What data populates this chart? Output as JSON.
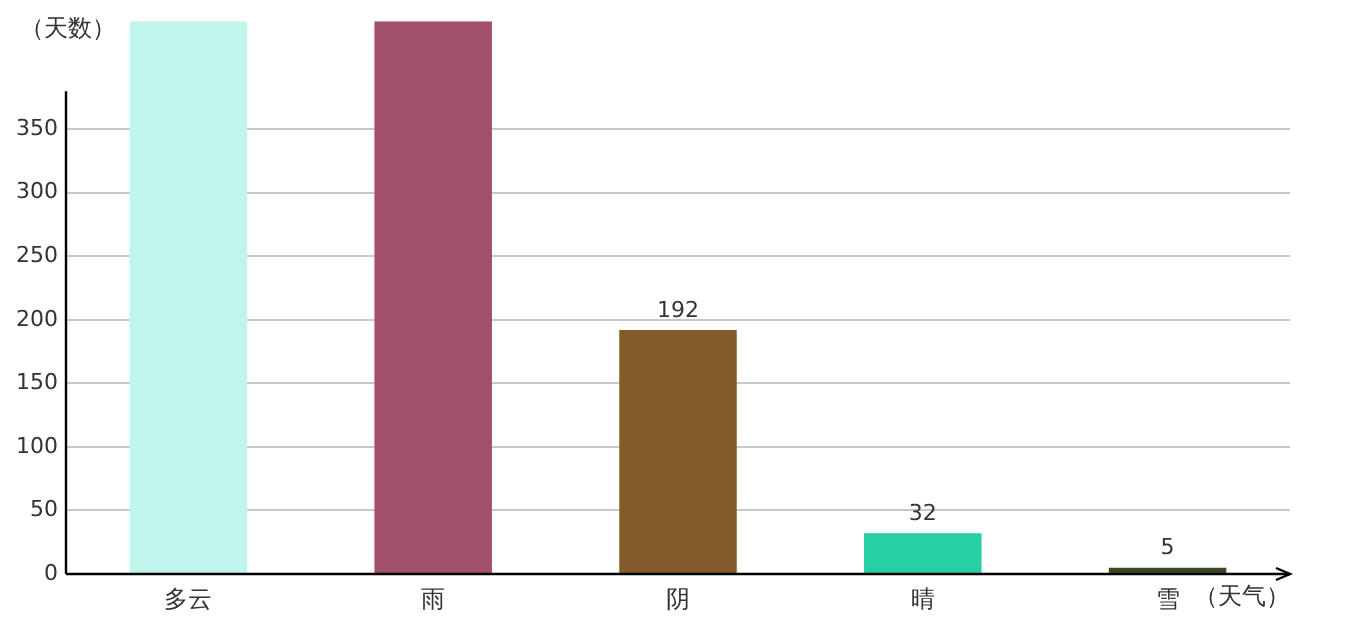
{
  "chart_data": {
    "type": "bar",
    "xlabel": "（天气）",
    "ylabel": "（天数）",
    "categories": [
      "多云",
      "雨",
      "阴",
      "晴",
      "雪"
    ],
    "values": [
      435,
      435,
      192,
      32,
      5
    ],
    "value_labels": [
      null,
      null,
      "192",
      "32",
      "5"
    ],
    "colors": [
      "#c1f5ec",
      "#a24f6c",
      "#835b28",
      "#27d0a4",
      "#3a4b24"
    ],
    "ylim": [
      0,
      435
    ],
    "yticks": [
      0,
      50,
      100,
      150,
      200,
      250,
      300,
      350
    ],
    "grid": "y",
    "legend": false
  }
}
